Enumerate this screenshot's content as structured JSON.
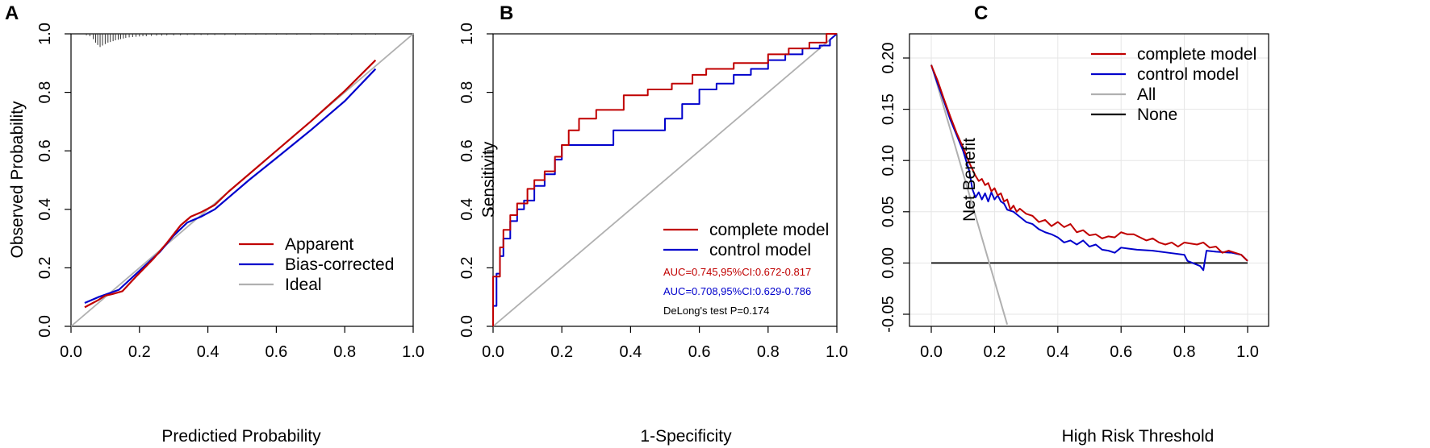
{
  "colors": {
    "complete": "#c00000",
    "control": "#0000cc",
    "ideal": "#b0b0b0",
    "all": "#b0b0b0",
    "none": "#000000",
    "grid": "#e6e6e6",
    "axis": "#000000"
  },
  "chart_data": [
    {
      "id": "A",
      "type": "line",
      "panel_label": "A",
      "xlabel": "Predictied Probability",
      "ylabel": "Observed Probability",
      "xlim": [
        0,
        1
      ],
      "ylim": [
        0,
        1
      ],
      "xticks": [
        0,
        0.2,
        0.4,
        0.6,
        0.8,
        1
      ],
      "xtick_labels": [
        "0.0",
        "0.2",
        "0.4",
        "0.6",
        "0.8",
        "1.0"
      ],
      "yticks": [
        0,
        0.2,
        0.4,
        0.6,
        0.8,
        1
      ],
      "ytick_labels": [
        "0.0",
        "0.2",
        "0.4",
        "0.6",
        "0.8",
        "1.0"
      ],
      "grid": false,
      "legend": {
        "position": "bottom-center",
        "entries": [
          {
            "label": "Apparent",
            "color_key": "complete"
          },
          {
            "label": "Bias-corrected",
            "color_key": "control"
          },
          {
            "label": "Ideal",
            "color_key": "ideal"
          }
        ]
      },
      "rug": {
        "x": [
          0.045,
          0.055,
          0.065,
          0.072,
          0.078,
          0.085,
          0.092,
          0.1,
          0.108,
          0.115,
          0.123,
          0.13,
          0.138,
          0.145,
          0.153,
          0.16,
          0.17,
          0.18,
          0.19,
          0.2,
          0.21,
          0.22,
          0.235,
          0.25,
          0.265,
          0.28,
          0.3,
          0.32,
          0.34,
          0.36,
          0.38,
          0.4,
          0.42,
          0.45,
          0.48,
          0.51,
          0.54,
          0.57,
          0.6,
          0.63,
          0.66,
          0.7,
          0.74,
          0.78,
          0.82,
          0.86,
          0.89
        ],
        "len": [
          0.005,
          0.008,
          0.018,
          0.03,
          0.038,
          0.045,
          0.04,
          0.035,
          0.03,
          0.028,
          0.025,
          0.022,
          0.02,
          0.018,
          0.016,
          0.014,
          0.012,
          0.011,
          0.01,
          0.009,
          0.008,
          0.008,
          0.007,
          0.006,
          0.006,
          0.005,
          0.005,
          0.005,
          0.004,
          0.004,
          0.004,
          0.004,
          0.004,
          0.004,
          0.004,
          0.003,
          0.003,
          0.003,
          0.003,
          0.003,
          0.003,
          0.003,
          0.003,
          0.003,
          0.003,
          0.003,
          0.003
        ]
      },
      "series": [
        {
          "name": "Ideal",
          "color_key": "ideal",
          "width": 1.8,
          "x": [
            0,
            1
          ],
          "y": [
            0,
            1
          ]
        },
        {
          "name": "Bias-corrected",
          "color_key": "control",
          "width": 2.2,
          "x": [
            0.04,
            0.08,
            0.14,
            0.2,
            0.26,
            0.3,
            0.34,
            0.38,
            0.42,
            0.46,
            0.52,
            0.6,
            0.7,
            0.8,
            0.89
          ],
          "y": [
            0.08,
            0.1,
            0.125,
            0.19,
            0.255,
            0.31,
            0.355,
            0.375,
            0.4,
            0.44,
            0.5,
            0.575,
            0.67,
            0.77,
            0.88
          ]
        },
        {
          "name": "Apparent",
          "color_key": "complete",
          "width": 2.2,
          "x": [
            0.04,
            0.08,
            0.1,
            0.12,
            0.15,
            0.19,
            0.24,
            0.28,
            0.32,
            0.35,
            0.38,
            0.42,
            0.46,
            0.52,
            0.6,
            0.7,
            0.8,
            0.89
          ],
          "y": [
            0.065,
            0.09,
            0.105,
            0.11,
            0.12,
            0.17,
            0.23,
            0.285,
            0.345,
            0.375,
            0.39,
            0.415,
            0.46,
            0.52,
            0.6,
            0.7,
            0.805,
            0.91
          ]
        }
      ]
    },
    {
      "id": "B",
      "type": "line",
      "panel_label": "B",
      "xlabel": "1-Specificity",
      "ylabel": "Sensitivity",
      "xlim": [
        0,
        1
      ],
      "ylim": [
        0,
        1
      ],
      "xticks": [
        0,
        0.2,
        0.4,
        0.6,
        0.8,
        1
      ],
      "xtick_labels": [
        "0.0",
        "0.2",
        "0.4",
        "0.6",
        "0.8",
        "1.0"
      ],
      "yticks": [
        0,
        0.2,
        0.4,
        0.6,
        0.8,
        1
      ],
      "ytick_labels": [
        "0.0",
        "0.2",
        "0.4",
        "0.6",
        "0.8",
        "1.0"
      ],
      "grid": false,
      "legend": {
        "position": "bottom-right",
        "entries": [
          {
            "label": "complete model",
            "color_key": "complete"
          },
          {
            "label": "control model",
            "color_key": "control"
          }
        ]
      },
      "annotations": [
        {
          "text": "AUC=0.745,95%CI:0.672-0.817",
          "color_key": "complete"
        },
        {
          "text": "AUC=0.708,95%CI:0.629-0.786",
          "color_key": "control"
        },
        {
          "text": "DeLong's test P=0.174",
          "color_key": "none"
        }
      ],
      "series": [
        {
          "name": "diagonal",
          "color_key": "ideal",
          "width": 1.8,
          "x": [
            0,
            1
          ],
          "y": [
            0,
            1
          ]
        },
        {
          "name": "control model",
          "color_key": "control",
          "width": 2,
          "x": [
            0,
            0,
            0.01,
            0.01,
            0.02,
            0.02,
            0.03,
            0.03,
            0.05,
            0.05,
            0.07,
            0.07,
            0.09,
            0.09,
            0.12,
            0.12,
            0.15,
            0.15,
            0.18,
            0.18,
            0.2,
            0.2,
            0.25,
            0.25,
            0.35,
            0.35,
            0.5,
            0.5,
            0.55,
            0.55,
            0.6,
            0.6,
            0.65,
            0.65,
            0.7,
            0.7,
            0.75,
            0.75,
            0.8,
            0.8,
            0.85,
            0.85,
            0.9,
            0.9,
            0.95,
            0.95,
            0.98,
            0.98,
            1
          ],
          "y": [
            0,
            0.07,
            0.07,
            0.18,
            0.18,
            0.24,
            0.24,
            0.3,
            0.3,
            0.36,
            0.36,
            0.4,
            0.4,
            0.43,
            0.43,
            0.48,
            0.48,
            0.52,
            0.52,
            0.57,
            0.57,
            0.62,
            0.62,
            0.62,
            0.62,
            0.67,
            0.67,
            0.71,
            0.71,
            0.76,
            0.76,
            0.81,
            0.81,
            0.83,
            0.83,
            0.86,
            0.86,
            0.88,
            0.88,
            0.91,
            0.91,
            0.93,
            0.93,
            0.95,
            0.95,
            0.96,
            0.96,
            0.98,
            1
          ]
        },
        {
          "name": "complete model",
          "color_key": "complete",
          "width": 2,
          "x": [
            0,
            0,
            0.02,
            0.02,
            0.03,
            0.03,
            0.05,
            0.05,
            0.07,
            0.07,
            0.1,
            0.1,
            0.12,
            0.12,
            0.15,
            0.15,
            0.18,
            0.18,
            0.2,
            0.2,
            0.22,
            0.22,
            0.25,
            0.25,
            0.3,
            0.3,
            0.38,
            0.38,
            0.45,
            0.45,
            0.52,
            0.52,
            0.58,
            0.58,
            0.62,
            0.62,
            0.7,
            0.7,
            0.8,
            0.8,
            0.86,
            0.86,
            0.92,
            0.92,
            0.97,
            0.97,
            1
          ],
          "y": [
            0,
            0.17,
            0.17,
            0.27,
            0.27,
            0.33,
            0.33,
            0.38,
            0.38,
            0.42,
            0.42,
            0.47,
            0.47,
            0.5,
            0.5,
            0.53,
            0.53,
            0.58,
            0.58,
            0.62,
            0.62,
            0.67,
            0.67,
            0.71,
            0.71,
            0.74,
            0.74,
            0.79,
            0.79,
            0.81,
            0.81,
            0.83,
            0.83,
            0.86,
            0.86,
            0.88,
            0.88,
            0.9,
            0.9,
            0.93,
            0.93,
            0.95,
            0.95,
            0.97,
            0.97,
            1,
            1
          ]
        }
      ]
    },
    {
      "id": "C",
      "type": "line",
      "panel_label": "C",
      "xlabel": "High Risk Threshold",
      "ylabel": "Net Benefit",
      "xlim": [
        0,
        1
      ],
      "ylim": [
        -0.05,
        0.2
      ],
      "xticks": [
        0,
        0.2,
        0.4,
        0.6,
        0.8,
        1
      ],
      "xtick_labels": [
        "0.0",
        "0.2",
        "0.4",
        "0.6",
        "0.8",
        "1.0"
      ],
      "yticks": [
        -0.05,
        0,
        0.05,
        0.1,
        0.15,
        0.2
      ],
      "ytick_labels": [
        "-0.05",
        "0.00",
        "0.05",
        "0.10",
        "0.15",
        "0.20"
      ],
      "grid": true,
      "legend": {
        "position": "top-right",
        "entries": [
          {
            "label": "complete model",
            "color_key": "complete"
          },
          {
            "label": "control model",
            "color_key": "control"
          },
          {
            "label": "All",
            "color_key": "all"
          },
          {
            "label": "None",
            "color_key": "none"
          }
        ]
      },
      "series": [
        {
          "name": "None",
          "color_key": "none",
          "width": 1.8,
          "x": [
            0,
            1
          ],
          "y": [
            0,
            0
          ]
        },
        {
          "name": "All",
          "color_key": "all",
          "width": 2,
          "x": [
            0,
            0.24
          ],
          "y": [
            0.194,
            -0.06
          ]
        },
        {
          "name": "control model",
          "color_key": "control",
          "width": 2,
          "x": [
            0,
            0.02,
            0.04,
            0.06,
            0.08,
            0.1,
            0.12,
            0.13,
            0.14,
            0.15,
            0.16,
            0.17,
            0.18,
            0.19,
            0.2,
            0.21,
            0.22,
            0.23,
            0.24,
            0.26,
            0.28,
            0.3,
            0.32,
            0.34,
            0.36,
            0.38,
            0.4,
            0.42,
            0.44,
            0.46,
            0.48,
            0.5,
            0.52,
            0.54,
            0.56,
            0.58,
            0.6,
            0.65,
            0.7,
            0.75,
            0.8,
            0.81,
            0.85,
            0.86,
            0.87,
            0.9,
            0.95,
            0.98,
            1
          ],
          "y": [
            0.193,
            0.175,
            0.158,
            0.14,
            0.125,
            0.11,
            0.09,
            0.072,
            0.064,
            0.069,
            0.062,
            0.068,
            0.06,
            0.069,
            0.062,
            0.066,
            0.06,
            0.058,
            0.052,
            0.05,
            0.045,
            0.04,
            0.038,
            0.033,
            0.03,
            0.028,
            0.025,
            0.02,
            0.022,
            0.018,
            0.022,
            0.016,
            0.018,
            0.013,
            0.012,
            0.01,
            0.015,
            0.013,
            0.012,
            0.01,
            0.008,
            0.002,
            -0.003,
            -0.007,
            0.012,
            0.011,
            0.01,
            0.008,
            0.002
          ]
        },
        {
          "name": "complete model",
          "color_key": "complete",
          "width": 2,
          "x": [
            0,
            0.02,
            0.04,
            0.06,
            0.08,
            0.1,
            0.12,
            0.14,
            0.15,
            0.16,
            0.17,
            0.18,
            0.19,
            0.2,
            0.21,
            0.22,
            0.23,
            0.24,
            0.25,
            0.26,
            0.27,
            0.28,
            0.3,
            0.32,
            0.34,
            0.36,
            0.38,
            0.4,
            0.42,
            0.44,
            0.46,
            0.48,
            0.5,
            0.52,
            0.54,
            0.56,
            0.58,
            0.6,
            0.62,
            0.64,
            0.66,
            0.68,
            0.7,
            0.72,
            0.74,
            0.76,
            0.78,
            0.8,
            0.82,
            0.84,
            0.86,
            0.88,
            0.9,
            0.92,
            0.94,
            0.96,
            0.98,
            1
          ],
          "y": [
            0.193,
            0.178,
            0.16,
            0.143,
            0.127,
            0.113,
            0.098,
            0.085,
            0.08,
            0.082,
            0.076,
            0.078,
            0.07,
            0.073,
            0.066,
            0.068,
            0.06,
            0.062,
            0.052,
            0.056,
            0.05,
            0.053,
            0.048,
            0.046,
            0.04,
            0.042,
            0.036,
            0.04,
            0.035,
            0.038,
            0.03,
            0.032,
            0.027,
            0.028,
            0.024,
            0.026,
            0.025,
            0.03,
            0.028,
            0.028,
            0.025,
            0.022,
            0.024,
            0.02,
            0.018,
            0.02,
            0.016,
            0.02,
            0.019,
            0.018,
            0.02,
            0.015,
            0.016,
            0.01,
            0.012,
            0.01,
            0.008,
            0.002
          ]
        }
      ]
    }
  ]
}
